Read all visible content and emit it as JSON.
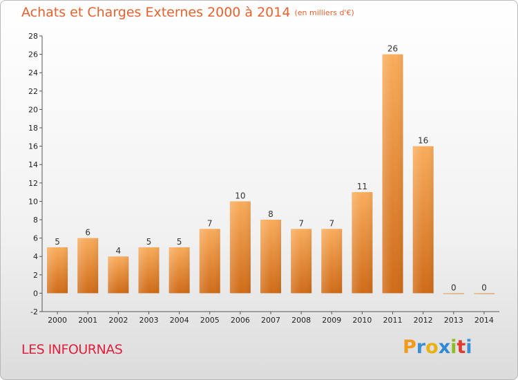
{
  "header": {
    "title": "Achats et Charges Externes 2000 à 2014",
    "unit": "(en milliers d'€)"
  },
  "footer": {
    "place": "LES INFOURNAS",
    "logo": [
      "P",
      "r",
      "o",
      "x",
      "i",
      "t",
      "i"
    ]
  },
  "colors": {
    "title": "#e8612c",
    "place": "#e0203c",
    "bar_light": "#f8a95a",
    "bar_dark": "#cc6a19"
  },
  "chart_data": {
    "type": "bar",
    "title": "Achats et Charges Externes 2000 à 2014",
    "subtitle": "(en milliers d'€)",
    "xlabel": "",
    "ylabel": "",
    "categories": [
      "2000",
      "2001",
      "2002",
      "2003",
      "2004",
      "2005",
      "2006",
      "2007",
      "2008",
      "2009",
      "2010",
      "2011",
      "2012",
      "2013",
      "2014"
    ],
    "values": [
      5,
      6,
      4,
      5,
      5,
      7,
      10,
      8,
      7,
      7,
      11,
      26,
      16,
      0,
      0
    ],
    "value_labels": [
      "5",
      "6",
      "4",
      "5",
      "5",
      "7",
      "10",
      "8",
      "7",
      "7",
      "11",
      "26",
      "16",
      "0",
      "0"
    ],
    "ylim": [
      -2,
      28
    ],
    "yticks": [
      -2,
      0,
      2,
      4,
      6,
      8,
      10,
      12,
      14,
      16,
      18,
      20,
      22,
      24,
      26,
      28
    ],
    "grid": false,
    "legend": "none"
  }
}
